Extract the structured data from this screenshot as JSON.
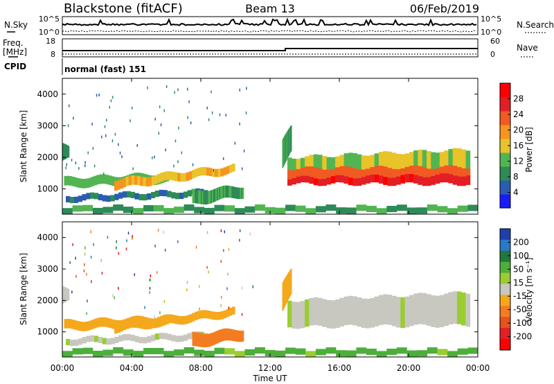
{
  "header": {
    "station": "Blackstone (fitACF)",
    "beam": "Beam 13",
    "date": "06/Feb/2019"
  },
  "strips": {
    "sky_label": "N.Sky",
    "search_label": "N.Search",
    "freq_label": "Freq.",
    "freq_unit": "[MHz]",
    "nave_label": "Nave",
    "cpid_label": "CPID",
    "cpid_value": "normal (fast) 151",
    "noise_ticks_left": [
      "10^5",
      "10^0"
    ],
    "noise_ticks_right": [
      "10^5",
      "10^0"
    ],
    "freq_ticks": [
      "18",
      "8"
    ],
    "nave_ticks": [
      "60",
      "0"
    ]
  },
  "axes": {
    "xlabel": "Time UT",
    "ylabel": "Slant Range [km]",
    "xticks": [
      "00:00",
      "04:00",
      "08:00",
      "12:00",
      "16:00",
      "20:00",
      "00:00"
    ],
    "yticks": [
      "1000",
      "2000",
      "3000",
      "4000"
    ]
  },
  "power_colorbar": {
    "label": "Power [dB]",
    "ticks": [
      "4",
      "8",
      "12",
      "16",
      "20",
      "24",
      "28"
    ],
    "colors": [
      "#1a1aff",
      "#2a5db0",
      "#2e8b57",
      "#52b552",
      "#e8c32a",
      "#f7941d",
      "#f15a22",
      "#e31e24",
      "#ff0000"
    ]
  },
  "velocity_colorbar": {
    "label": "Velocity [m s⁻¹]",
    "ticks": [
      "200",
      "100",
      "50",
      "15",
      "-15",
      "-50",
      "-100",
      "-200"
    ],
    "colors": [
      "#1f3fae",
      "#2a78c9",
      "#1f7a3a",
      "#4caf3a",
      "#9acd32",
      "#c8c8c0",
      "#f4a81c",
      "#f47c20",
      "#e8501e",
      "#e31e24",
      "#ff0000"
    ]
  },
  "chart_data": [
    {
      "type": "heatmap",
      "panel": "power",
      "x_unit": "UT hours",
      "xlim": [
        0,
        24
      ],
      "ylim": [
        200,
        4500
      ],
      "regions": [
        {
          "t": [
            0.0,
            0.35
          ],
          "r_low": [
            1900,
            1950
          ],
          "r_high": [
            2450,
            2300
          ],
          "power": 8
        },
        {
          "t": [
            0.1,
            6.0
          ],
          "r_low": [
            1050,
            1200
          ],
          "r_high": [
            1350,
            1500
          ],
          "power": 12
        },
        {
          "t": [
            3.0,
            9.8
          ],
          "r_low": [
            1000,
            1500
          ],
          "r_high": [
            1300,
            1750
          ],
          "power": 18
        },
        {
          "t": [
            0.2,
            9.8
          ],
          "r_low": [
            600,
            800
          ],
          "r_high": [
            800,
            1000
          ],
          "power": 6
        },
        {
          "t": [
            7.5,
            10.4
          ],
          "r_low": [
            500,
            750
          ],
          "r_high": [
            950,
            1100
          ],
          "power": 10
        },
        {
          "t": [
            0.0,
            24.0
          ],
          "r_low": [
            250,
            250
          ],
          "r_high": [
            450,
            450
          ],
          "power": 10
        },
        {
          "t": [
            12.7,
            13.2
          ],
          "r_low": [
            1600,
            2200
          ],
          "r_high": [
            2500,
            3000
          ],
          "power": 10
        },
        {
          "t": [
            13.0,
            23.3
          ],
          "r_low": [
            1250,
            1300
          ],
          "r_high": [
            2000,
            2250
          ],
          "power": 14
        },
        {
          "t": [
            13.0,
            23.3
          ],
          "r_low": [
            1200,
            1200
          ],
          "r_high": [
            1650,
            1700
          ],
          "power": 24
        },
        {
          "t": [
            13.0,
            23.3
          ],
          "r_low": [
            1150,
            1150
          ],
          "r_high": [
            1350,
            1450
          ],
          "power": 29
        }
      ]
    },
    {
      "type": "heatmap",
      "panel": "velocity",
      "x_unit": "UT hours",
      "xlim": [
        0,
        24
      ],
      "ylim": [
        200,
        4500
      ],
      "regions": [
        {
          "t": [
            0.0,
            0.35
          ],
          "r_low": [
            1900,
            1950
          ],
          "r_high": [
            2450,
            2300
          ],
          "velocity": 0
        },
        {
          "t": [
            0.1,
            6.0
          ],
          "r_low": [
            1050,
            1200
          ],
          "r_high": [
            1350,
            1500
          ],
          "velocity": -30
        },
        {
          "t": [
            3.0,
            9.8
          ],
          "r_low": [
            1000,
            1500
          ],
          "r_high": [
            1300,
            1750
          ],
          "velocity": -30
        },
        {
          "t": [
            0.2,
            9.8
          ],
          "r_low": [
            600,
            800
          ],
          "r_high": [
            800,
            1000
          ],
          "velocity": 0
        },
        {
          "t": [
            7.5,
            10.4
          ],
          "r_low": [
            500,
            750
          ],
          "r_high": [
            950,
            1100
          ],
          "velocity": -80
        },
        {
          "t": [
            0.0,
            24.0
          ],
          "r_low": [
            250,
            250
          ],
          "r_high": [
            450,
            450
          ],
          "velocity": 20
        },
        {
          "t": [
            12.7,
            13.2
          ],
          "r_low": [
            1600,
            2200
          ],
          "r_high": [
            2500,
            3000
          ],
          "velocity": -30
        },
        {
          "t": [
            13.0,
            23.3
          ],
          "r_low": [
            1150,
            1200
          ],
          "r_high": [
            2000,
            2250
          ],
          "velocity": 0
        }
      ]
    }
  ]
}
